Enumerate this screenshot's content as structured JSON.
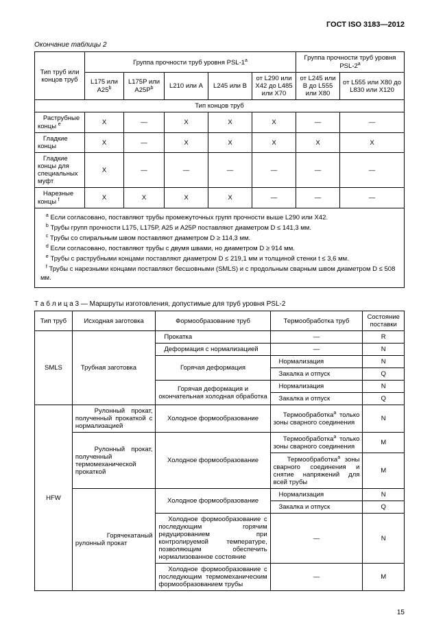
{
  "header": "ГОСТ ISO 3183—2012",
  "caption_t2": "Окончание таблицы 2",
  "table2": {
    "row_header": "Тип труб или концов труб",
    "group_psl1": "Группа прочности труб уровня PSL-1",
    "group_psl2": "Группа прочности труб уровня PSL-2",
    "cols": {
      "c1": "L175 или A25",
      "c2": "L175P или A25P",
      "c3": "L210 или A",
      "c4": "L245 или B",
      "c5": "от L290 или X42 до L485 или X70",
      "c6": "от L245 или B до L555 или X80",
      "c7": "от L555 или X80 до L830 или X120"
    },
    "ends_header": "Тип концов труб",
    "rows": [
      {
        "label": "Раструбные концы ",
        "sup": "e",
        "cells": [
          "X",
          "—",
          "X",
          "X",
          "X",
          "—",
          "—"
        ]
      },
      {
        "label": "Гладкие концы",
        "sup": "",
        "cells": [
          "X",
          "—",
          "X",
          "X",
          "X",
          "X",
          "X"
        ]
      },
      {
        "label": "Гладкие концы для специальных муфт",
        "sup": "",
        "cells": [
          "X",
          "—",
          "—",
          "—",
          "—",
          "—",
          "—"
        ]
      },
      {
        "label": "Нарезные концы ",
        "sup": "f",
        "cells": [
          "X",
          "X",
          "X",
          "X",
          "—",
          "—",
          "—"
        ]
      }
    ],
    "notes": {
      "a": "Если согласовано, поставляют трубы промежуточных групп прочности выше L290 или X42.",
      "b": "Трубы групп прочности L175, L175P, A25 и A25P поставляют диаметром D ≤ 141,3 мм.",
      "c": "Трубы со спиральным швом поставляют диаметром  D ≥ 114,3 мм.",
      "d": "Если согласовано, поставляют трубы с двумя швами, но диаметром  D ≥ 914 мм.",
      "e": "Трубы с раструбными концами поставляют диаметром D ≤ 219,1 мм и толщиной стенки t ≤ 3,6 мм.",
      "f": "Трубы с нарезными концами поставляют бесшовными (SMLS) и с продольным сварным швом диаметром D ≤ 508 мм."
    }
  },
  "caption_t3_prefix": "Т а б л и ц а",
  "caption_t3_rest": "  3 — Маршруты изготовления, допустимые для труб уровня PSL-2",
  "table3": {
    "headers": {
      "c1": "Тип труб",
      "c2": "Исходная заготовка",
      "c3": "Формообразование труб",
      "c4": "Термообработка труб",
      "c5": "Состояние поставки"
    },
    "smls_label": "SMLS",
    "smls_stock": "Трубная заготовка",
    "smls_rows": [
      {
        "form": "Прокатка",
        "heat": "—",
        "state": "R"
      },
      {
        "form": "Деформация с нормализацией",
        "heat": "—",
        "state": "N"
      },
      {
        "form": "Горячая деформация",
        "heat": "Нормализация",
        "state": "N",
        "form_span": 2
      },
      {
        "heat": "Закалка и отпуск",
        "state": "Q"
      },
      {
        "form": "Горячая деформация и окончательная холодная обработка",
        "heat": "Нормализация",
        "state": "N",
        "form_span": 2
      },
      {
        "heat": "Закалка и отпуск",
        "state": "Q"
      }
    ],
    "hfw_label": "HFW",
    "hfw_stock1": "Рулонный прокат, полученный прокаткой с нормализацией",
    "hfw_stock2": "Рулонный прокат, полученный термомеханической прокаткой",
    "hfw_stock3": "Горячекатаный рулонный прокат",
    "hfw_rows": [
      {
        "form": "Холодное формообразование",
        "heat_html": "Термообработка<sup>a</sup> только зоны сварного соединения",
        "state": "N"
      },
      {
        "form": "Холодное формообразование",
        "heat_html": "Термообработка<sup>a</sup> только зоны сварного соединения",
        "state": "M",
        "form_span": 2
      },
      {
        "heat_html": "Термообработка<sup>a</sup> зоны сварного соединения и снятие напряжений для всей трубы",
        "state": "M"
      },
      {
        "form": "Холодное формообразование",
        "heat": "Нормализация",
        "state": "N",
        "form_span": 2
      },
      {
        "heat": "Закалка и отпуск",
        "state": "Q"
      },
      {
        "form": "Холодное формообразование с последующим горячим редуцированием при контролируемой температуре, позволяющим обеспечить нормализованное состояние",
        "heat": "—",
        "state": "N"
      },
      {
        "form": "Холодное формообразование с последующим термомеханическим формообразованием трубы",
        "heat": "—",
        "state": "M"
      }
    ]
  },
  "pagenum": "15"
}
